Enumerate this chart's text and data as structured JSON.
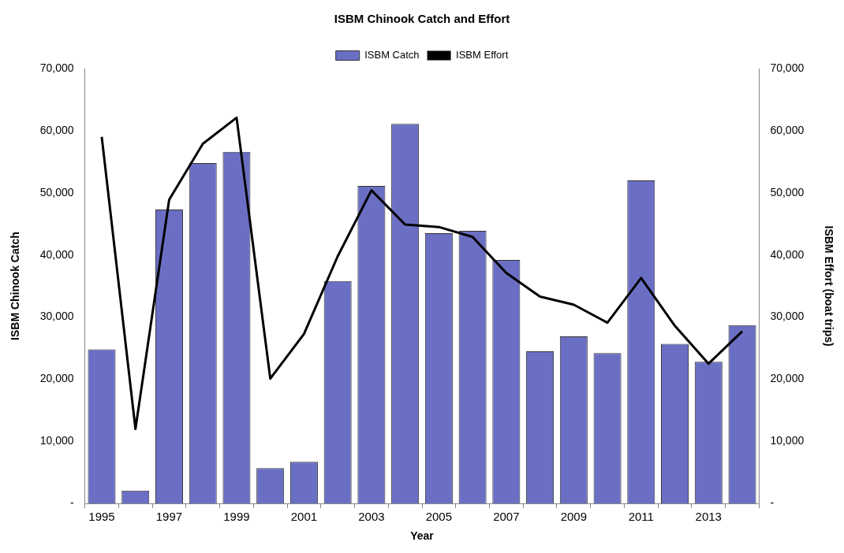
{
  "chart_data": {
    "type": "bar",
    "title": "ISBM Chinook Catch and Effort",
    "xlabel": "Year",
    "ylabel": "ISBM Chinook Catch",
    "y2label": "ISBM Effort (boat trips)",
    "categories": [
      "1995",
      null,
      "1997",
      null,
      "1999",
      null,
      "2001",
      null,
      "2003",
      null,
      "2005",
      null,
      "2007",
      null,
      "2009",
      null,
      "2011",
      null,
      "2013",
      null
    ],
    "series": [
      {
        "name": "ISBM Catch",
        "color": "#6b6fc4",
        "values": [
          24800,
          2100,
          47300,
          54800,
          56600,
          5700,
          6700,
          35800,
          51100,
          61100,
          43500,
          43900,
          39200,
          24500,
          26900,
          24200,
          52000,
          25700,
          22800,
          28700
        ]
      },
      {
        "name": "ISBM Effort",
        "type": "line",
        "axis": "y2",
        "color": "#000000",
        "values": [
          59000,
          12000,
          48900,
          57900,
          62100,
          20100,
          27300,
          39800,
          50400,
          44900,
          44500,
          42900,
          37100,
          33300,
          32000,
          29100,
          36300,
          28600,
          22500,
          27700
        ]
      }
    ],
    "ylim": [
      0,
      70000
    ],
    "yticks": [
      {
        "value": 0,
        "label": "-"
      },
      {
        "value": 10000,
        "label": "10,000"
      },
      {
        "value": 20000,
        "label": "20,000"
      },
      {
        "value": 30000,
        "label": "30,000"
      },
      {
        "value": 40000,
        "label": "40,000"
      },
      {
        "value": 50000,
        "label": "50,000"
      },
      {
        "value": 60000,
        "label": "60,000"
      },
      {
        "value": 70000,
        "label": "70,000"
      }
    ],
    "y2lim": [
      0,
      70000
    ],
    "y2ticks": [
      {
        "value": 0,
        "label": "-"
      },
      {
        "value": 10000,
        "label": "10,000"
      },
      {
        "value": 20000,
        "label": "20,000"
      },
      {
        "value": 30000,
        "label": "30,000"
      },
      {
        "value": 40000,
        "label": "40,000"
      },
      {
        "value": 50000,
        "label": "50,000"
      },
      {
        "value": 60000,
        "label": "60,000"
      },
      {
        "value": 70000,
        "label": "70,000"
      }
    ],
    "legend": "top",
    "grid": false,
    "marker": "none"
  }
}
